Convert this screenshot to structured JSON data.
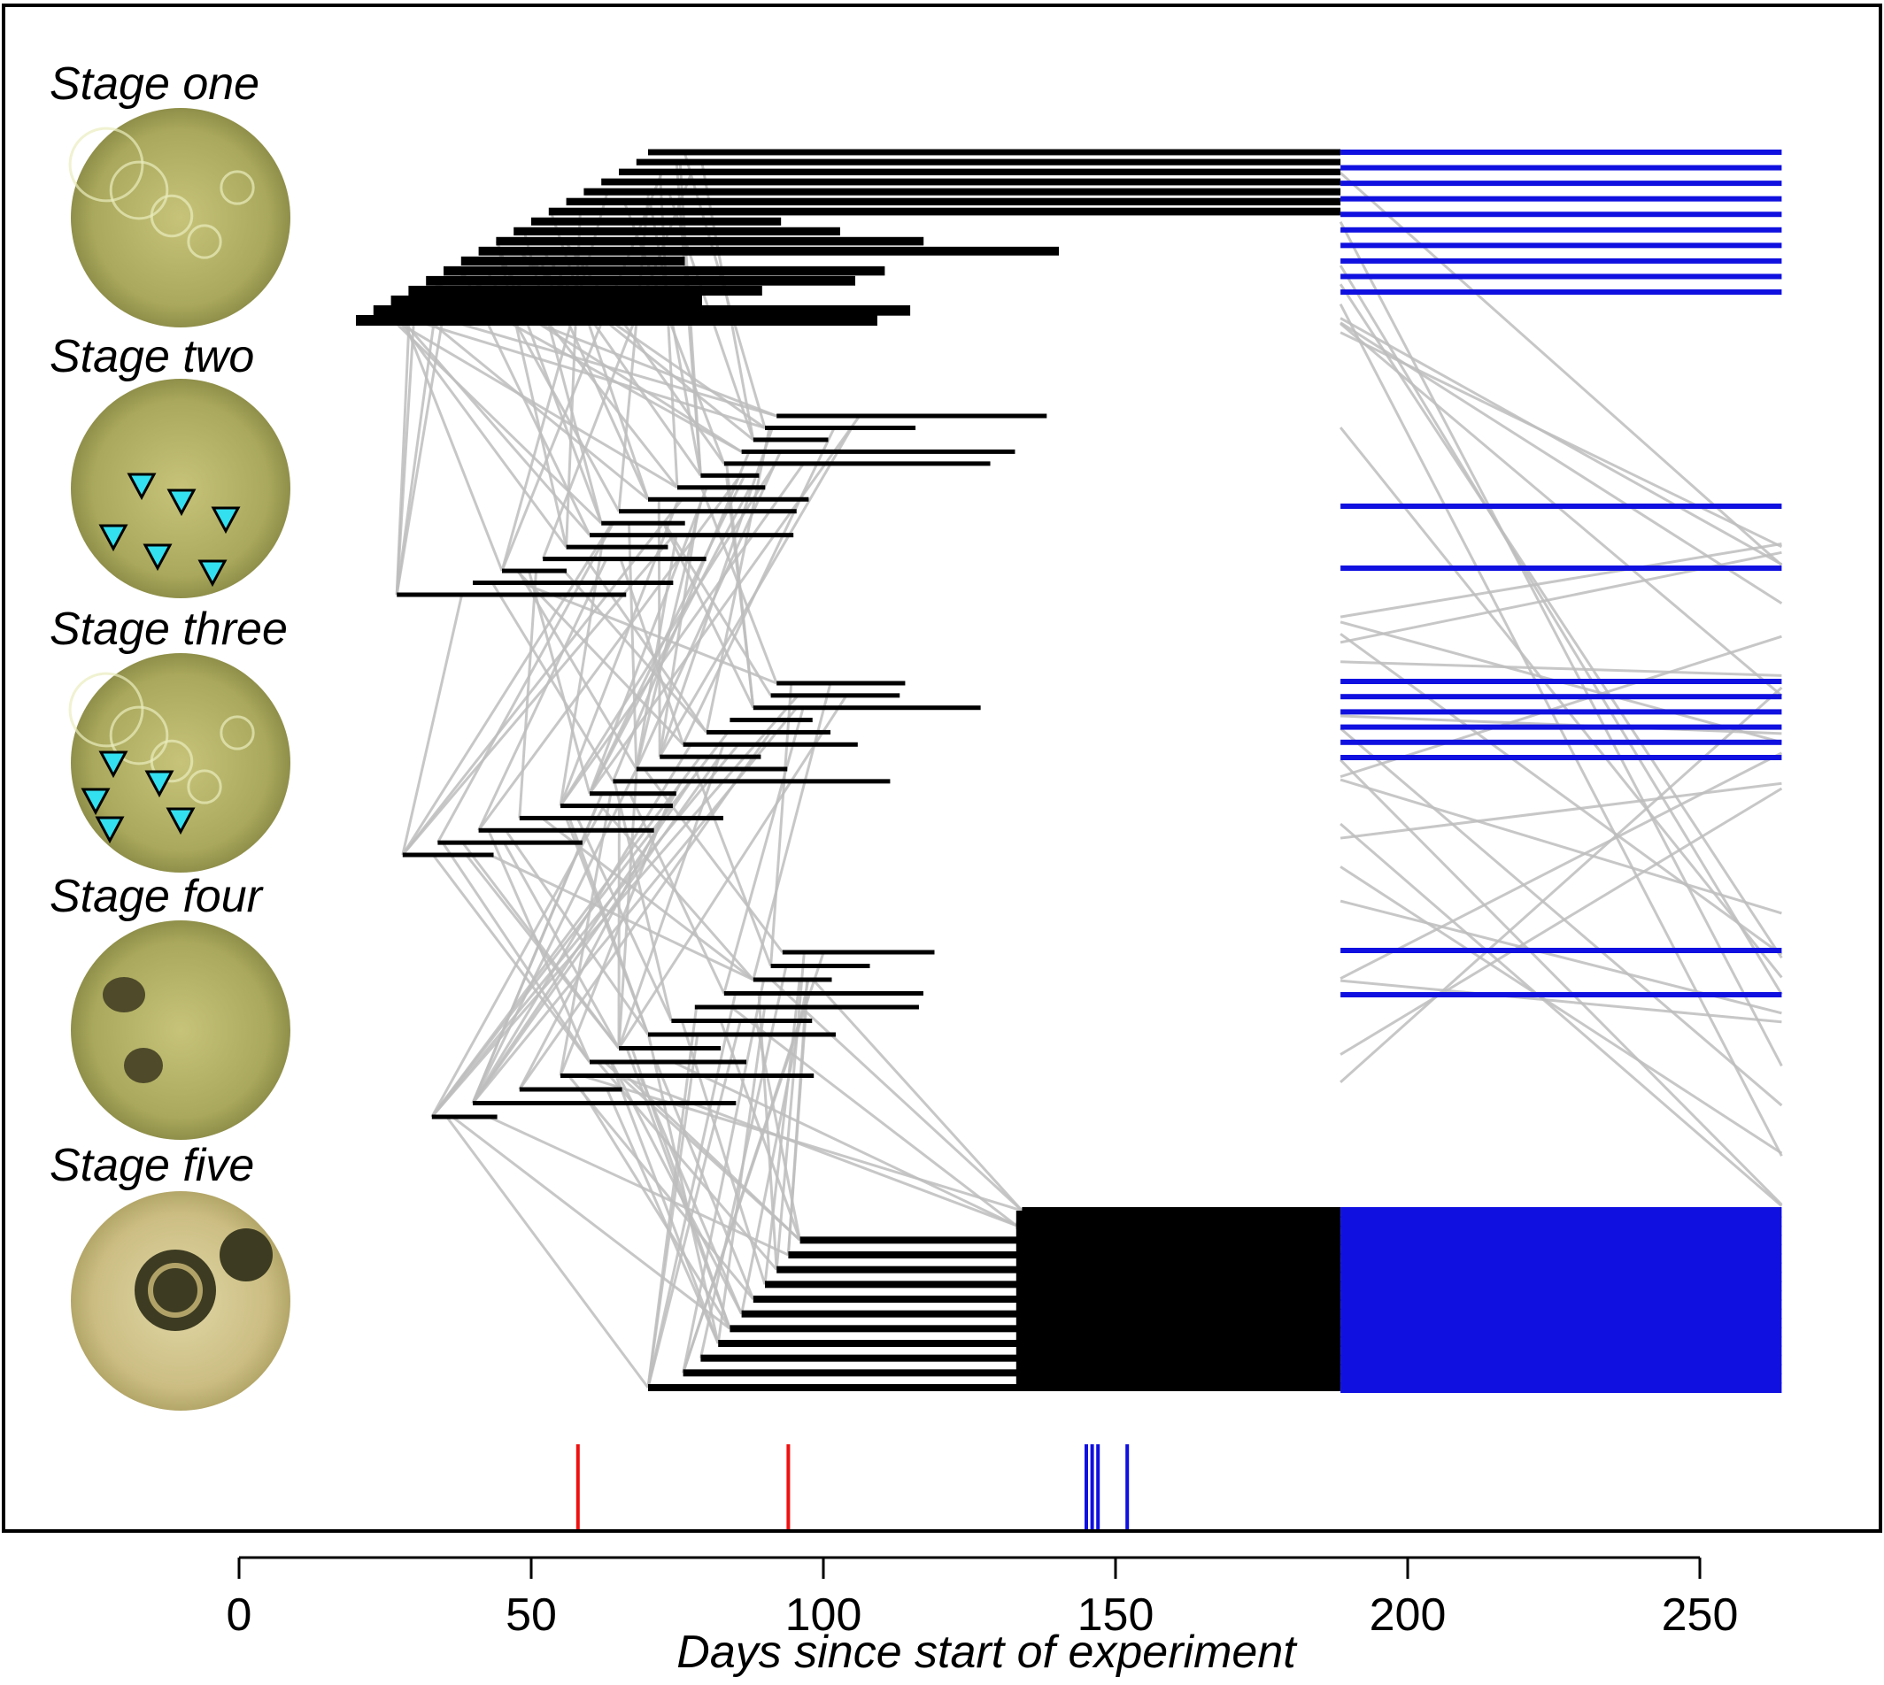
{
  "chart_data": {
    "type": "timeline",
    "xlabel": "Days since start of experiment",
    "xlim": [
      -40,
      280
    ],
    "x_ticks": [
      0,
      50,
      100,
      150,
      200,
      250
    ],
    "x_tick_labels": [
      "0",
      "50",
      "100",
      "150",
      "200",
      "250"
    ],
    "grid": false,
    "legend": "none",
    "colors": {
      "stage_bar": "#000000",
      "transition_line": "#bdbdbd",
      "final_bar": "#1010e0",
      "event_red": "#ee1111",
      "event_blue": "#1010e0",
      "egg_fill": "#b7b66c",
      "arrow_fill": "#33e0f0"
    },
    "stages": [
      {
        "name": "Stage one",
        "bands": [
          [
            -2.6,
            -2.52
          ]
        ]
      },
      {
        "name": "Stage two",
        "bands": [
          [
            -1.75,
            -1.05
          ]
        ]
      },
      {
        "name": "Stage three",
        "bands": [
          [
            -0.08,
            0.65
          ]
        ]
      },
      {
        "name": "Stage four",
        "bands": [
          [
            0.9,
            1.55
          ]
        ]
      },
      {
        "name": "Stage five",
        "bands": [
          [
            2.63,
            3.22
          ]
        ]
      }
    ],
    "stage_labels": [
      "Stage one",
      "Stage two",
      "Stage three",
      "Stage four",
      "Stage five"
    ],
    "stage_images": [
      "stage-one-egg",
      "stage-two-egg",
      "stage-three-egg",
      "stage-four-egg",
      "stage-five-egg"
    ],
    "stage_entry_days": {
      "stage_one": [
        20,
        23,
        26,
        29,
        32,
        35,
        38,
        41,
        44,
        47,
        50,
        53,
        56,
        59,
        62,
        65,
        68,
        70
      ],
      "stage_two": [
        27,
        40,
        45,
        52,
        56,
        60,
        62,
        65,
        70,
        75,
        79,
        83,
        86,
        88,
        90,
        92
      ],
      "stage_three": [
        28,
        34,
        41,
        48,
        55,
        60,
        64,
        68,
        72,
        76,
        80,
        84,
        88,
        91,
        92
      ],
      "stage_four": [
        33,
        40,
        48,
        55,
        60,
        65,
        70,
        74,
        78,
        83,
        88,
        91,
        93
      ],
      "stage_five": [
        70,
        76,
        79,
        82,
        84,
        86,
        88,
        90,
        92,
        94,
        96,
        133,
        134
      ]
    },
    "final_bars": {
      "start_day": 188.5,
      "end_day": 264,
      "stage_one_rows": 10,
      "stage_two_rows": 2,
      "stage_three_rows": 6,
      "stage_four_rows": 2,
      "stage_five_rows": 20
    },
    "event_markers": [
      {
        "day": 58,
        "color": "red"
      },
      {
        "day": 94,
        "color": "red"
      },
      {
        "day": 145,
        "color": "blue"
      },
      {
        "day": 146,
        "color": "blue"
      },
      {
        "day": 147,
        "color": "blue"
      },
      {
        "day": 152,
        "color": "blue"
      }
    ]
  }
}
